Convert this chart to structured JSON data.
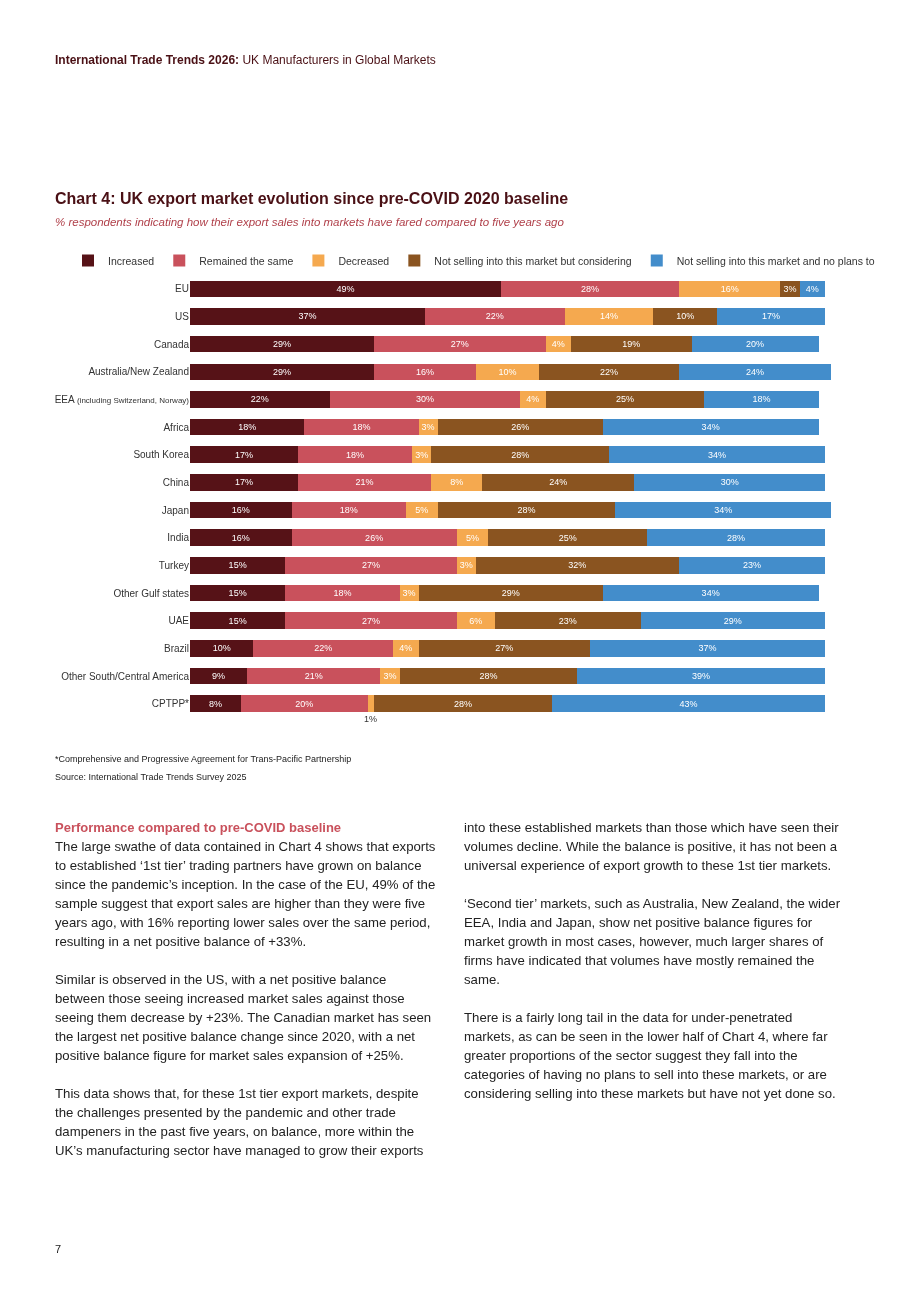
{
  "chart_data": {
    "type": "bar",
    "orientation": "horizontal",
    "stacked": true,
    "title": "Chart 4: UK export market evolution since pre-COVID 2020 baseline",
    "subtitle": "% respondents indicating how their export sales into markets have fared compared to five years ago",
    "legend": "top left",
    "grid": false,
    "tick_labels": "y",
    "categories": [
      "EU",
      "US",
      "Canada",
      "Australia/New Zealand",
      "EEA (including Switzerland, Norway)",
      "Africa",
      "South Korea",
      "China",
      "Japan",
      "India",
      "Turkey",
      "Other Gulf states",
      "UAE",
      "Brazil",
      "Other South/Central America",
      "CPTPP*"
    ],
    "series": [
      {
        "name": "Increased",
        "color": "#561217",
        "values": [
          49,
          37,
          29,
          29,
          22,
          18,
          17,
          17,
          16,
          16,
          15,
          15,
          15,
          10,
          9,
          8
        ],
        "value_labels": [
          "49%",
          "37%",
          "29%",
          "29%",
          "22%",
          "18%",
          "17%",
          "17%",
          "16%",
          "16%",
          "15%",
          "15%",
          "15%",
          "10%",
          "9%",
          "8%"
        ]
      },
      {
        "name": "Remained the same",
        "color": "#c9515c",
        "values": [
          28,
          22,
          27,
          16,
          30,
          18,
          18,
          21,
          18,
          26,
          27,
          18,
          27,
          22,
          21,
          20
        ],
        "value_labels": [
          "28%",
          "22%",
          "27%",
          "16%",
          "30%",
          "18%",
          "18%",
          "21%",
          "18%",
          "26%",
          "27%",
          "18%",
          "27%",
          "22%",
          "21%",
          "20%"
        ]
      },
      {
        "name": "Decreased",
        "color": "#f5a94f",
        "values": [
          16,
          14,
          4,
          10,
          4,
          3,
          3,
          8,
          5,
          5,
          3,
          3,
          6,
          4,
          3,
          1
        ],
        "value_labels": [
          "16%",
          "14%",
          "4%",
          "10%",
          "4%",
          "3%",
          "3%",
          "8%",
          "5%",
          "5%",
          "3%",
          "3%",
          "6%",
          "4%",
          "3%",
          "1%"
        ]
      },
      {
        "name": "Not selling into this market but considering",
        "color": "#8a5420",
        "values": [
          3,
          10,
          19,
          22,
          25,
          26,
          28,
          24,
          28,
          25,
          32,
          29,
          23,
          27,
          28,
          28
        ],
        "value_labels": [
          "3%",
          "10%",
          "19%",
          "22%",
          "25%",
          "26%",
          "28%",
          "24%",
          "28%",
          "25%",
          "32%",
          "29%",
          "23%",
          "27%",
          "28%",
          "28%"
        ]
      },
      {
        "name": "Not selling into this market and no plans to",
        "color": "#438dcb",
        "values": [
          4,
          17,
          20,
          24,
          18,
          34,
          34,
          30,
          34,
          28,
          23,
          34,
          29,
          37,
          39,
          43
        ],
        "value_labels": [
          "4%",
          "17%",
          "20%",
          "24%",
          "18%",
          "34%",
          "34%",
          "30%",
          "34%",
          "28%",
          "23%",
          "34%",
          "29%",
          "37%",
          "39%",
          "43%"
        ]
      }
    ],
    "annotations": [
      "International Trade Trends 2026:",
      "UK Manufacturers in Global Markets",
      "*Comprehensive and Progressive Agreement for Trans-Pacific Partnership",
      "Source: International Trade Trends Survey 2025",
      "Performance compared to pre-COVID baseline",
      "The large swathe of data contained in Chart 4 shows that exports to established ‘1st tier’ trading partners have grown on balance since the pandemic’s inception. In the case of the EU, 49% of the sample suggest that export sales are higher than they were five years ago, with 16% reporting lower sales over the same period, resulting in a net positive balance of +33%.",
      "Similar is observed in the US, with a net positive balance between those seeing increased market sales against those seeing them decrease by +23%. The Canadian market has seen the largest net positive balance change since 2020, with a net positive balance figure for market sales expansion of +25%.",
      "This data shows that, for these 1st tier export markets, despite the challenges presented by the pandemic and other trade dampeners in the past five years, on balance, more within the UK’s manufacturing sector have managed to grow their exports into these established markets than those which have seen their volumes decline. While the balance is positive, it has not been a universal experience of export growth to these 1st tier markets.",
      "‘Second tier’ markets, such as Australia, New Zealand, the wider EEA, India and Japan, show net positive balance figures for market growth in most cases, however, much larger shares of firms have indicated that volumes have mostly remained the same.",
      "There is a fairly long tail in the data for under-penetrated markets, as can be seen in the lower half of Chart 4, where far greater proportions of the sector suggest they fall into the categories of having no plans to sell into these markets, or are considering selling into these markets but have not yet done so.",
      "7"
    ]
  }
}
